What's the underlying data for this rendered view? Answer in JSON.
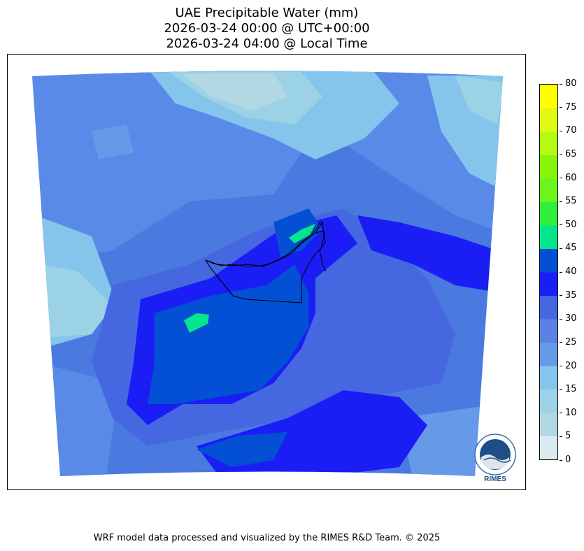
{
  "title": {
    "line1": "UAE Precipitable Water (mm)",
    "line2": "2026-03-24 00:00 @ UTC+00:00",
    "line3": "2026-03-24 04:00 @ Local Time"
  },
  "colorbar": {
    "ticks": [
      "0",
      "5",
      "10",
      "15",
      "20",
      "25",
      "30",
      "35",
      "40",
      "45",
      "50",
      "55",
      "60",
      "65",
      "70",
      "75",
      "80"
    ],
    "colors": [
      "#dcebf2",
      "#b1d8e3",
      "#9bd2e6",
      "#85c4eb",
      "#6699e8",
      "#5a82e6",
      "#4568e0",
      "#1a1ef5",
      "#0450d4",
      "#05e68c",
      "#2ef03a",
      "#6cf51c",
      "#87f50a",
      "#b4fa14",
      "#e1fa14",
      "#ffff00",
      "#ffd400"
    ]
  },
  "map": {
    "background_color": "#4a79e0",
    "region": "UAE"
  },
  "logo": {
    "text": "RIMES"
  },
  "footer": {
    "text": "WRF model data processed and visualized by the RIMES R&D Team. © 2025"
  }
}
